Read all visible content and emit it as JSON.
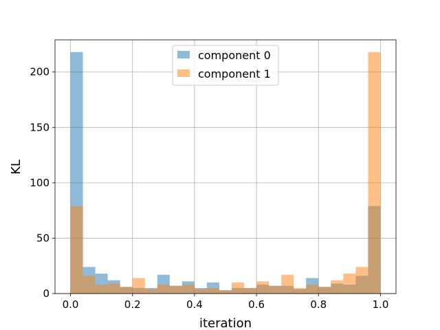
{
  "chart_data": {
    "type": "bar",
    "xlabel": "iteration",
    "ylabel": "KL",
    "xlim": [
      -0.05,
      1.05
    ],
    "ylim": [
      0,
      229
    ],
    "grid": true,
    "legend_position": "upper center",
    "x_ticks": [
      "0.0",
      "0.2",
      "0.4",
      "0.6",
      "0.8",
      "1.0"
    ],
    "y_ticks": [
      "0",
      "50",
      "100",
      "150",
      "200"
    ],
    "bin_edges": [
      0.0,
      0.04,
      0.08,
      0.12,
      0.16,
      0.2,
      0.24,
      0.28,
      0.32,
      0.36,
      0.4,
      0.44,
      0.48,
      0.52,
      0.56,
      0.6,
      0.64,
      0.68,
      0.72,
      0.76,
      0.8,
      0.84,
      0.88,
      0.92,
      0.96,
      1.0
    ],
    "series": [
      {
        "name": "component 0",
        "color": "#1f77b4",
        "alpha": 0.5,
        "values": [
          218,
          24,
          18,
          12,
          6,
          5,
          5,
          17,
          7,
          11,
          5,
          10,
          3,
          5,
          5,
          8,
          7,
          7,
          4,
          14,
          6,
          9,
          8,
          16,
          79
        ]
      },
      {
        "name": "component 1",
        "color": "#ff7f0e",
        "alpha": 0.5,
        "values": [
          79,
          16,
          8,
          9,
          6,
          14,
          4,
          8,
          7,
          8,
          4,
          5,
          3,
          10,
          5,
          11,
          7,
          17,
          5,
          8,
          6,
          12,
          18,
          24,
          218
        ]
      }
    ]
  }
}
